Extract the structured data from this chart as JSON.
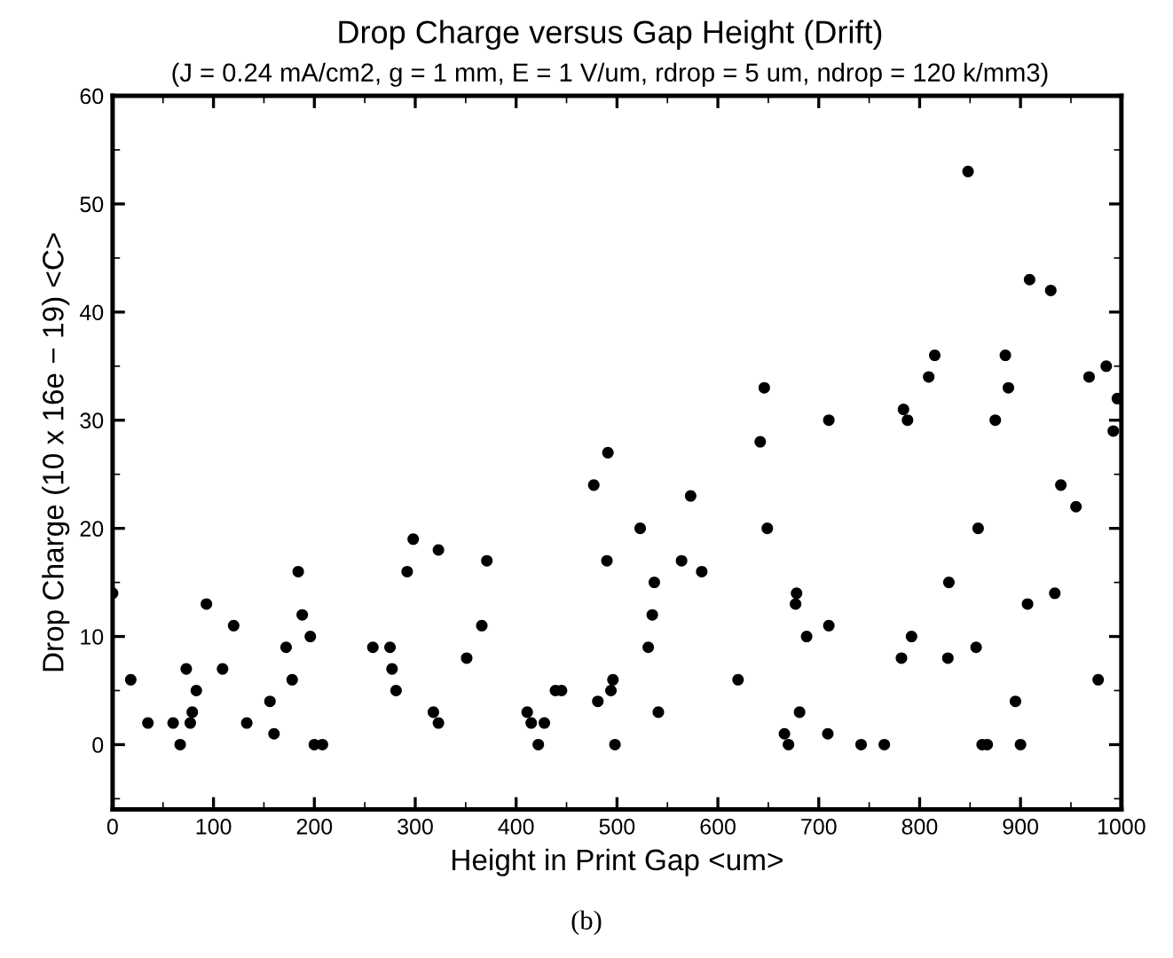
{
  "chart_data": {
    "type": "scatter",
    "title": "Drop Charge versus Gap Height (Drift)",
    "subtitle": "(J = 0.24 mA/cm2, g = 1 mm, E = 1 V/um, rdrop = 5 um, ndrop = 120 k/mm3)",
    "xlabel": "Height in Print Gap <um>",
    "ylabel": "Drop Charge (10 x 16e − 19) <C>",
    "annotations": [
      "(b)"
    ],
    "xlim": [
      0,
      1000
    ],
    "xticks": [
      0,
      100,
      200,
      300,
      400,
      500,
      600,
      700,
      800,
      900,
      1000
    ],
    "ylim": [
      -6,
      60
    ],
    "yticks": [
      0,
      10,
      20,
      30,
      40,
      50,
      60
    ],
    "grid": false,
    "marker": "circle",
    "series": [
      {
        "color": "#000000",
        "x": [
          0,
          18,
          35,
          60,
          67,
          73,
          77,
          79,
          83,
          93,
          109,
          120,
          133,
          156,
          160,
          172,
          178,
          184,
          188,
          196,
          200,
          208,
          258,
          275,
          277,
          281,
          292,
          298,
          318,
          323,
          323,
          351,
          366,
          371,
          411,
          415,
          422,
          428,
          439,
          445,
          477,
          481,
          491,
          490,
          494,
          496,
          498,
          523,
          531,
          535,
          537,
          541,
          564,
          573,
          584,
          620,
          642,
          646,
          649,
          666,
          670,
          677,
          678,
          681,
          688,
          709,
          710,
          710,
          742,
          765,
          782,
          784,
          788,
          792,
          809,
          815,
          828,
          829,
          848,
          856,
          858,
          862,
          867,
          875,
          885,
          888,
          895,
          900,
          907,
          909,
          930,
          934,
          940,
          955,
          968,
          977,
          985,
          992,
          996
        ],
        "values": [
          14,
          6,
          2,
          2,
          0,
          7,
          2,
          3,
          5,
          13,
          7,
          11,
          2,
          4,
          1,
          9,
          6,
          16,
          12,
          10,
          0,
          0,
          9,
          9,
          7,
          5,
          16,
          19,
          3,
          2,
          18,
          8,
          11,
          17,
          3,
          2,
          0,
          2,
          5,
          5,
          24,
          4,
          27,
          17,
          5,
          6,
          0,
          20,
          9,
          12,
          15,
          3,
          17,
          23,
          16,
          6,
          28,
          33,
          20,
          1,
          0,
          13,
          14,
          3,
          10,
          1,
          11,
          30,
          0,
          0,
          8,
          31,
          30,
          10,
          34,
          36,
          8,
          15,
          53,
          9,
          20,
          0,
          0,
          30,
          36,
          33,
          4,
          0,
          13,
          43,
          42,
          14,
          24,
          22,
          34,
          6,
          35,
          29,
          32
        ]
      }
    ]
  }
}
